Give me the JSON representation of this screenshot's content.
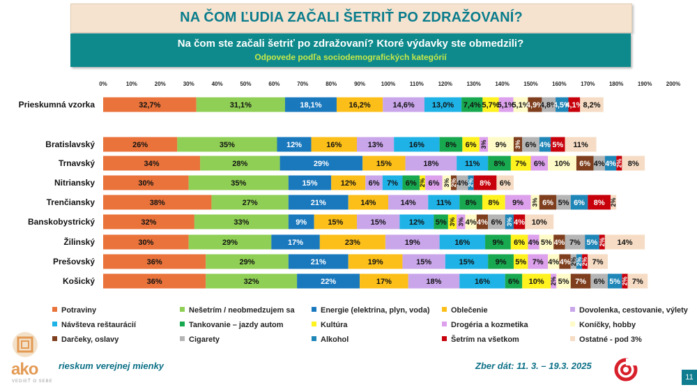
{
  "header": {
    "title": "NA ČOM ĽUDIA ZAČALI ŠETRIŤ PO ZDRAŽOVANÍ?",
    "question": "Na čom ste začali šetriť po zdražovaní? Ktoré výdavky ste obmedzili?",
    "subtitle": "Odpovede podľa sociodemografických kategórií"
  },
  "footer": {
    "left": "rieskum verejnej mienky",
    "right": "Zber dát: 11. 3. – 19.3. 2025",
    "page": "11",
    "logo_text": "ako",
    "logo_sub": "VEDIEŤ O SEBE"
  },
  "chart_data": {
    "type": "bar",
    "orientation": "horizontal",
    "stacked": true,
    "xlim": [
      0,
      200
    ],
    "x_ticks": [
      "0%",
      "10%",
      "20%",
      "30%",
      "40%",
      "50%",
      "60%",
      "70%",
      "80%",
      "90%",
      "100%",
      "110%",
      "120%",
      "130%",
      "140%",
      "150%",
      "160%",
      "170%",
      "180%",
      "190%",
      "200%"
    ],
    "series": [
      {
        "name": "Potraviny",
        "color": "#e9733b"
      },
      {
        "name": "Nešetrím / neobmedzujem sa",
        "color": "#8fcf55"
      },
      {
        "name": "Energie (elektrina, plyn, voda)",
        "color": "#1a78bd"
      },
      {
        "name": "Oblečenie",
        "color": "#fcbf1a"
      },
      {
        "name": "Dovolenka, cestovanie, výlety",
        "color": "#c9a6ea"
      },
      {
        "name": "Návšteva reštaurácií",
        "color": "#1eb2e6"
      },
      {
        "name": "Tankovanie – jazdy autom",
        "color": "#18a84f"
      },
      {
        "name": "Kultúra",
        "color": "#fff21e"
      },
      {
        "name": "Drogéria a kozmetika",
        "color": "#dca0ec"
      },
      {
        "name": "Koníčky, hobby",
        "color": "#fffbc8"
      },
      {
        "name": "Darčeky, oslavy",
        "color": "#7f3f1e"
      },
      {
        "name": "Cigarety",
        "color": "#b5b5b5"
      },
      {
        "name": "Alkohol",
        "color": "#1f86b8"
      },
      {
        "name": "Šetrím na všetkom",
        "color": "#c7000b"
      },
      {
        "name": "Ostatné - pod 3%",
        "color": "#f6dcc4"
      }
    ],
    "categories": [
      {
        "name": "Prieskumná vzorka",
        "values": [
          32.7,
          31.1,
          18.1,
          16.2,
          14.6,
          13.0,
          7.4,
          5.7,
          5.1,
          5.1,
          4.9,
          4.8,
          4.5,
          4.1,
          8.2
        ],
        "labels": [
          "32,7%",
          "31,1%",
          "18,1%",
          "16,2%",
          "14,6%",
          "13,0%",
          "7,4%",
          "5,7%",
          "5,1%",
          "5,1%",
          "4,9%",
          "4,8%",
          "4,5%",
          "4,1%",
          "8,2%"
        ]
      },
      {
        "name": "Bratislavský",
        "values": [
          26,
          35,
          12,
          16,
          13,
          16,
          8,
          6,
          3,
          9,
          3,
          6,
          4,
          5,
          11
        ],
        "labels": [
          "26%",
          "35%",
          "12%",
          "16%",
          "13%",
          "16%",
          "8%",
          "6%",
          "3%",
          "9%",
          "3%",
          "6%",
          "4%",
          "5%",
          "11%"
        ]
      },
      {
        "name": "Trnavský",
        "values": [
          34,
          28,
          29,
          15,
          18,
          11,
          8,
          7,
          6,
          10,
          6,
          4,
          4,
          2,
          8
        ],
        "labels": [
          "34%",
          "28%",
          "29%",
          "15%",
          "18%",
          "11%",
          "8%",
          "7%",
          "6%",
          "10%",
          "6%",
          "4%",
          "4%",
          "2%",
          "8%"
        ]
      },
      {
        "name": "Nitriansky",
        "values": [
          30,
          35,
          15,
          12,
          6,
          7,
          6,
          2,
          6,
          3,
          2,
          4,
          2,
          8,
          6
        ],
        "labels": [
          "30%",
          "35%",
          "15%",
          "12%",
          "6%",
          "7%",
          "6%",
          "2%",
          "6%",
          "3%",
          "2%",
          "4%",
          "2%",
          "8%",
          "6%"
        ]
      },
      {
        "name": "Trenčiansky",
        "values": [
          38,
          27,
          21,
          14,
          14,
          11,
          8,
          8,
          9,
          3,
          6,
          5,
          6,
          8,
          2
        ],
        "labels": [
          "38%",
          "27%",
          "21%",
          "14%",
          "14%",
          "11%",
          "8%",
          "8%",
          "9%",
          "3%",
          "6%",
          "5%",
          "6%",
          "8%",
          "2%"
        ]
      },
      {
        "name": "Banskobystrický",
        "values": [
          32,
          33,
          9,
          15,
          15,
          12,
          5,
          3,
          3,
          4,
          4,
          6,
          3,
          4,
          10
        ],
        "labels": [
          "32%",
          "33%",
          "9%",
          "15%",
          "15%",
          "12%",
          "5%",
          "3%",
          "3%",
          "4%",
          "4%",
          "6%",
          "3%",
          "4%",
          "10%"
        ]
      },
      {
        "name": "Žilinský",
        "values": [
          30,
          29,
          17,
          23,
          19,
          16,
          9,
          6,
          4,
          5,
          4,
          7,
          5,
          2,
          14
        ],
        "labels": [
          "30%",
          "29%",
          "17%",
          "23%",
          "19%",
          "16%",
          "9%",
          "6%",
          "4%",
          "5%",
          "4%",
          "7%",
          "5%",
          "2%",
          "14%"
        ]
      },
      {
        "name": "Prešovský",
        "values": [
          36,
          29,
          21,
          19,
          15,
          15,
          9,
          5,
          7,
          4,
          4,
          2,
          2,
          2,
          7
        ],
        "labels": [
          "36%",
          "29%",
          "21%",
          "19%",
          "15%",
          "15%",
          "9%",
          "5%",
          "7%",
          "4%",
          "4%",
          "2%",
          "2%",
          "2%",
          "7%"
        ]
      },
      {
        "name": "Košický",
        "values": [
          36,
          32,
          22,
          17,
          18,
          16,
          6,
          10,
          2,
          5,
          7,
          6,
          5,
          2,
          7
        ],
        "labels": [
          "36%",
          "32%",
          "22%",
          "17%",
          "18%",
          "16%",
          "6%",
          "10%",
          "2%",
          "5%",
          "7%",
          "6%",
          "5%",
          "2%",
          "7%"
        ]
      }
    ]
  }
}
